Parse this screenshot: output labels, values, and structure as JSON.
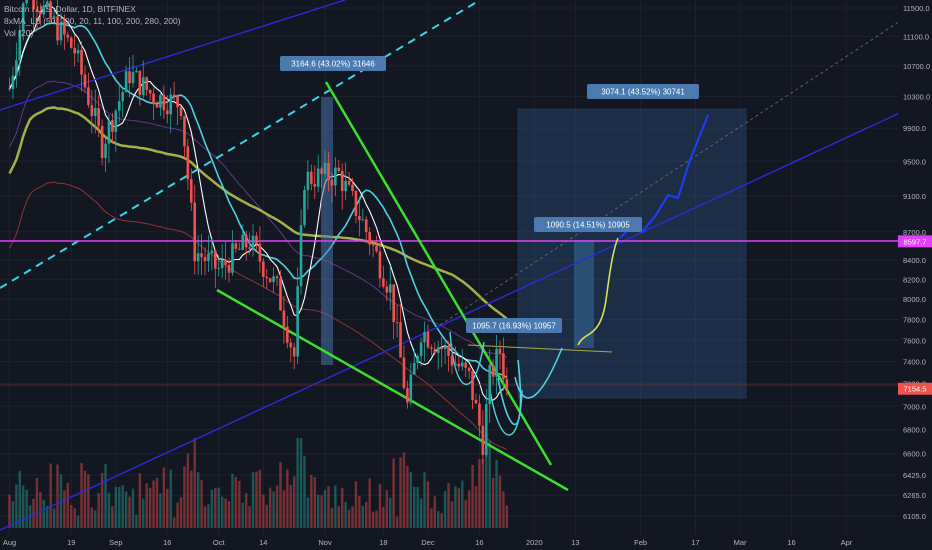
{
  "legend": {
    "symbol_line": "Bitcoin / U.S. Dollar, 1D, BITFINEX",
    "indicator_line": "8xMA_LB (50, 200, 20, 11, 100, 200, 280, 200)",
    "volume_line": "Vol (20)"
  },
  "colors": {
    "background": "#131722",
    "grid": "#1e222d",
    "axis_text": "#b2b5be",
    "candle_up": "#26a69a",
    "candle_down": "#ef5350",
    "wedge": "#39e12d",
    "channel": "#2b2bd9",
    "dashed_channel": "#38d6e6",
    "horizontal_line": "#e040fb",
    "ma_cyan": "#4dd0e1",
    "ma_white": "#ffffff",
    "ma_olive": "#a5b049",
    "ma_purple": "#7b3fa0",
    "ma_red": "#b23a3a",
    "projection_box": "#2a5a8a"
  },
  "chart_data": {
    "type": "candlestick",
    "title": "Bitcoin / U.S. Dollar, 1D, BITFINEX",
    "y_scale": "log",
    "ylim": [
      5950,
      11600
    ],
    "y_ticks": [
      "11500.0",
      "11100.0",
      "10700.0",
      "10300.0",
      "9900.0",
      "9500.0",
      "9100.0",
      "8700.0",
      "8400.0",
      "8200.0",
      "8000.0",
      "7800.0",
      "7600.0",
      "7400.0",
      "7200.0",
      "7000.0",
      "6800.0",
      "6600.0",
      "6425.0",
      "6265.0",
      "6105.0"
    ],
    "x_ticks": [
      "Aug",
      "19",
      "Sep",
      "16",
      "Oct",
      "14",
      "Nov",
      "18",
      "Dec",
      "16",
      "2020",
      "13",
      "Feb",
      "17",
      "Mar",
      "16",
      "Apr"
    ],
    "current_price_label": "7154.5",
    "horizontal_line_label": "8597.7",
    "price_path": [
      {
        "date": "2019-08-01",
        "close": 10400
      },
      {
        "date": "2019-08-06",
        "close": 11800
      },
      {
        "date": "2019-08-12",
        "close": 11400
      },
      {
        "date": "2019-08-20",
        "close": 10900
      },
      {
        "date": "2019-08-28",
        "close": 9700
      },
      {
        "date": "2019-09-05",
        "close": 10600
      },
      {
        "date": "2019-09-12",
        "close": 10300
      },
      {
        "date": "2019-09-20",
        "close": 10200
      },
      {
        "date": "2019-09-24",
        "close": 8500
      },
      {
        "date": "2019-10-01",
        "close": 8300
      },
      {
        "date": "2019-10-10",
        "close": 8600
      },
      {
        "date": "2019-10-18",
        "close": 8100
      },
      {
        "date": "2019-10-23",
        "close": 7450
      },
      {
        "date": "2019-10-26",
        "close": 9300
      },
      {
        "date": "2019-11-05",
        "close": 9350
      },
      {
        "date": "2019-11-12",
        "close": 8800
      },
      {
        "date": "2019-11-20",
        "close": 8100
      },
      {
        "date": "2019-11-25",
        "close": 7000
      },
      {
        "date": "2019-11-29",
        "close": 7700
      },
      {
        "date": "2019-12-06",
        "close": 7500
      },
      {
        "date": "2019-12-13",
        "close": 7250
      },
      {
        "date": "2019-12-17",
        "close": 6700
      },
      {
        "date": "2019-12-19",
        "close": 7250
      },
      {
        "date": "2019-12-22",
        "close": 7500
      },
      {
        "date": "2019-12-24",
        "close": 7154.5
      }
    ],
    "annotations": [
      {
        "text": "3164.6 (43.02%) 31646",
        "date": "2019-10-25",
        "price": 10500
      },
      {
        "text": "3074.1 (43.52%) 30741",
        "date": "2020-01-20",
        "price": 10300
      },
      {
        "text": "1090.5 (14.51%) 10905",
        "date": "2020-01-01",
        "price": 8800
      },
      {
        "text": "1095.7 (16.93%) 10957",
        "date": "2019-12-07",
        "price": 7700
      }
    ]
  }
}
